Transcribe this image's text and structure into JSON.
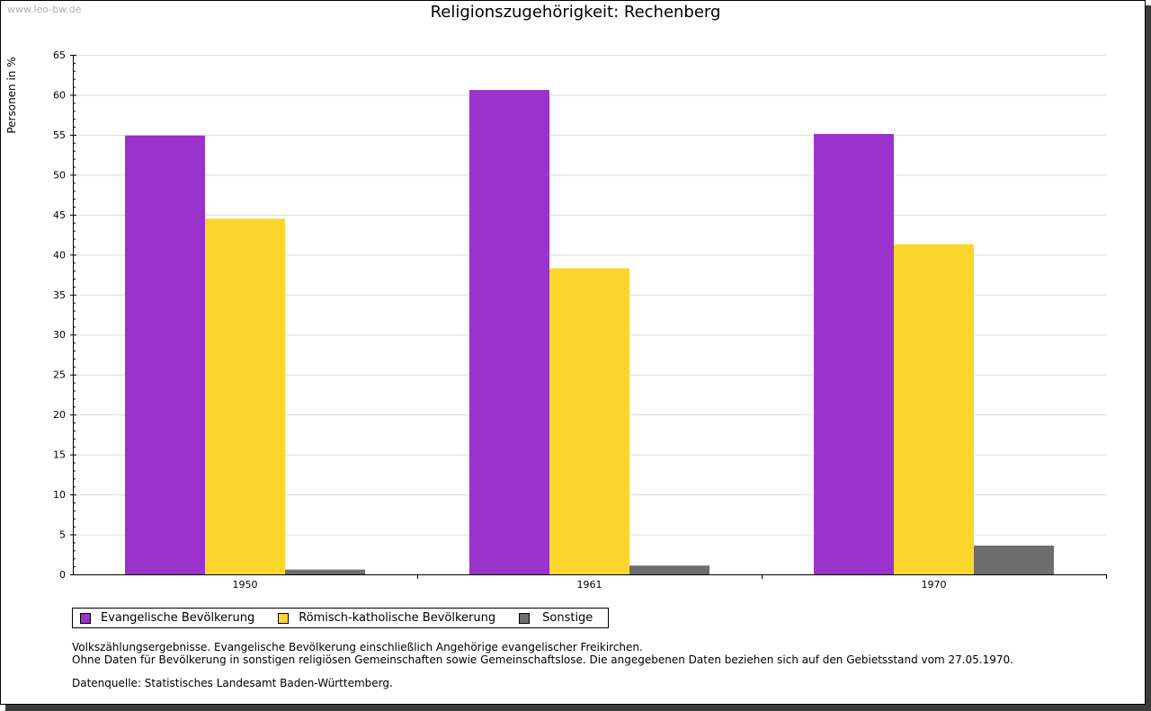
{
  "watermark": "www.leo-bw.de",
  "chart_data": {
    "type": "bar",
    "title": "Religionszugehörigkeit: Rechenberg",
    "xlabel": "",
    "ylabel": "Personen in %",
    "categories": [
      "1950",
      "1961",
      "1970"
    ],
    "series": [
      {
        "name": "Evangelische Bevölkerung",
        "color": "#9933cc",
        "values": [
          54.9,
          60.6,
          55.1
        ]
      },
      {
        "name": "Römisch-katholische Bevölkerung",
        "color": "#fcd62d",
        "values": [
          44.5,
          38.3,
          41.3
        ]
      },
      {
        "name": "Sonstige",
        "color": "#6e6e6e",
        "values": [
          0.6,
          1.1,
          3.6
        ]
      }
    ],
    "ylim": [
      0,
      65
    ],
    "yticks": [
      0,
      5,
      10,
      15,
      20,
      25,
      30,
      35,
      40,
      45,
      50,
      55,
      60,
      65
    ],
    "grid": true,
    "legend_position": "bottom-left"
  },
  "notes": {
    "line1": "Volkszählungsergebnisse. Evangelische Bevölkerung einschließlich Angehörige evangelischer Freikirchen.",
    "line2": "Ohne Daten für Bevölkerung in sonstigen religiösen Gemeinschaften sowie Gemeinschaftslose. Die angegebenen Daten beziehen sich auf den Gebietsstand vom 27.05.1970.",
    "source": "Datenquelle: Statistisches Landesamt Baden-Württemberg."
  }
}
